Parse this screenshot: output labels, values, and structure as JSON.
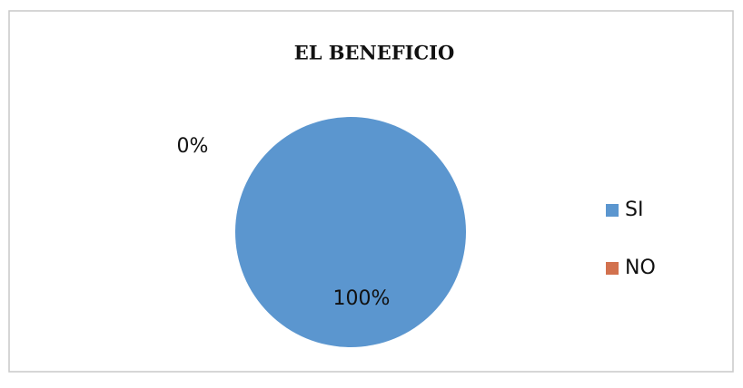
{
  "chart_data": {
    "type": "pie",
    "title": "EL BENEFICIO",
    "categories": [
      "SI",
      "NO"
    ],
    "values": [
      100,
      0
    ],
    "value_labels": [
      "100%",
      "0%"
    ],
    "colors": [
      "#5b96cf",
      "#d2714e"
    ],
    "legend": "right"
  }
}
